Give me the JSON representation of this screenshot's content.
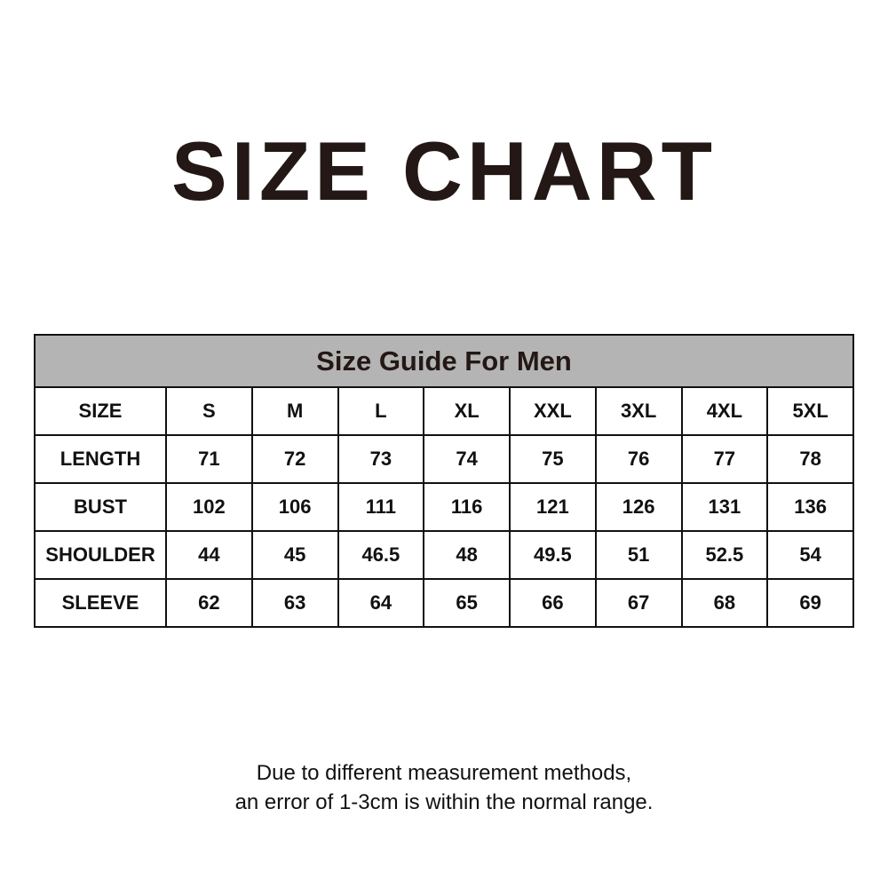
{
  "title": "SIZE CHART",
  "table": {
    "caption": "Size Guide For Men",
    "header": [
      "SIZE",
      "S",
      "M",
      "L",
      "XL",
      "XXL",
      "3XL",
      "4XL",
      "5XL"
    ],
    "rows": [
      [
        "LENGTH",
        "71",
        "72",
        "73",
        "74",
        "75",
        "76",
        "77",
        "78"
      ],
      [
        "BUST",
        "102",
        "106",
        "111",
        "116",
        "121",
        "126",
        "131",
        "136"
      ],
      [
        "SHOULDER",
        "44",
        "45",
        "46.5",
        "48",
        "49.5",
        "51",
        "52.5",
        "54"
      ],
      [
        "SLEEVE",
        "62",
        "63",
        "64",
        "65",
        "66",
        "67",
        "68",
        "69"
      ]
    ]
  },
  "note": {
    "line1": "Due to different measurement methods,",
    "line2": "an error of 1-3cm is within the normal range."
  },
  "colors": {
    "text": "#231815",
    "header_bg": "#b4b4b4"
  }
}
